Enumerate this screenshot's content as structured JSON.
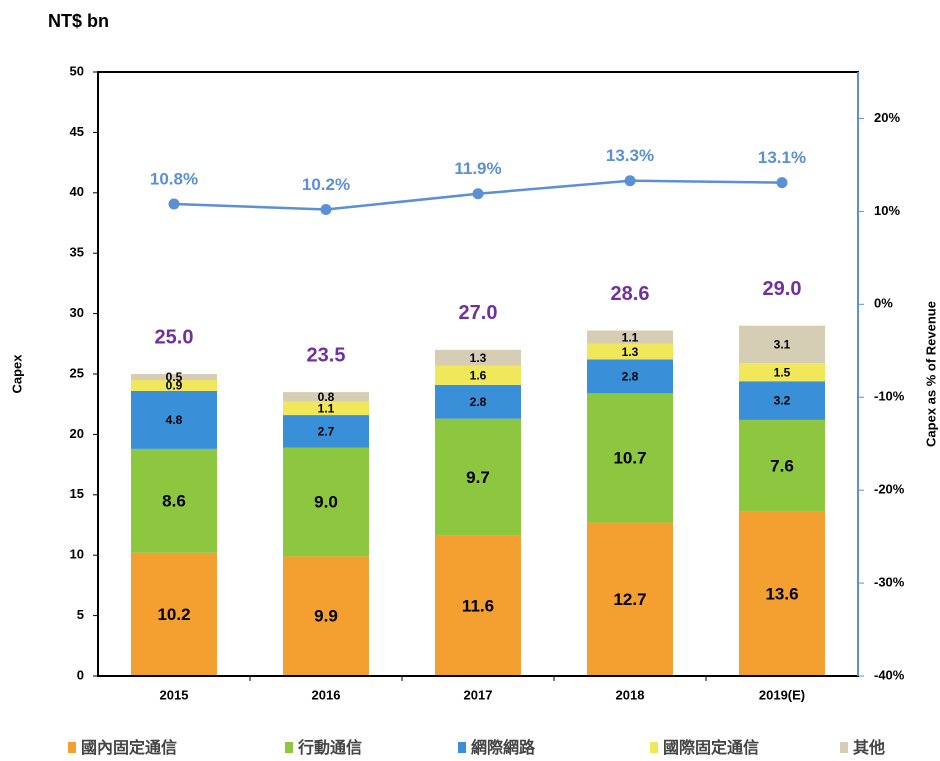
{
  "chart_data": {
    "type": "bar",
    "stacked": true,
    "y_axis_title": "NT$ bn",
    "ylabel": "Capex",
    "y2label": "Capex as % of Revenue",
    "categories": [
      "2015",
      "2016",
      "2017",
      "2018",
      "2019(E)"
    ],
    "series": [
      {
        "name": "國內固定通信",
        "color": "#f4a030",
        "values": [
          10.2,
          9.9,
          11.6,
          12.7,
          13.6
        ],
        "value_labels": [
          "10.2",
          "9.9",
          "11.6",
          "12.7",
          "13.6"
        ]
      },
      {
        "name": "行動通信",
        "color": "#8dc63f",
        "values": [
          8.6,
          9.0,
          9.7,
          10.7,
          7.6
        ],
        "value_labels": [
          "8.6",
          "9.0",
          "9.7",
          "10.7",
          "7.6"
        ]
      },
      {
        "name": "網際網路",
        "color": "#3a8fd9",
        "values": [
          4.8,
          2.7,
          2.8,
          2.8,
          3.2
        ],
        "value_labels": [
          "4.8",
          "2.7",
          "2.8",
          "2.8",
          "3.2"
        ]
      },
      {
        "name": "國際固定通信",
        "color": "#f0e85a",
        "values": [
          0.9,
          1.1,
          1.6,
          1.3,
          1.5
        ],
        "value_labels": [
          "0.9",
          "1.1",
          "1.6",
          "1.3",
          "1.5"
        ]
      },
      {
        "name": "其他",
        "color": "#d6cdb5",
        "values": [
          0.5,
          0.8,
          1.3,
          1.1,
          3.1
        ],
        "value_labels": [
          "0.5",
          "0.8",
          "1.3",
          "1.1",
          "3.1"
        ]
      }
    ],
    "totals": {
      "color": "#7030a0",
      "values": [
        25.0,
        23.5,
        27.0,
        28.6,
        29.0
      ],
      "value_labels": [
        "25.0",
        "23.5",
        "27.0",
        "28.6",
        "29.0"
      ]
    },
    "line": {
      "type": "line",
      "axis": "y2",
      "color": "#5b8fd6",
      "values": [
        10.8,
        10.2,
        11.9,
        13.3,
        13.1
      ],
      "value_labels": [
        "10.8%",
        "10.2%",
        "11.9%",
        "13.3%",
        "13.1%"
      ]
    },
    "ylim": [
      0,
      50
    ],
    "yticks": [
      0,
      5,
      10,
      15,
      20,
      25,
      30,
      35,
      40,
      45,
      50
    ],
    "y2lim": [
      -40,
      25
    ],
    "y2ticks": [
      {
        "value": -40,
        "label": "-40%"
      },
      {
        "value": -30,
        "label": "-30%"
      },
      {
        "value": -20,
        "label": "-20%"
      },
      {
        "value": -10,
        "label": "-10%"
      },
      {
        "value": 0,
        "label": "0%"
      },
      {
        "value": 10,
        "label": "10%"
      },
      {
        "value": 20,
        "label": "20%"
      }
    ],
    "legend": "bottom"
  }
}
